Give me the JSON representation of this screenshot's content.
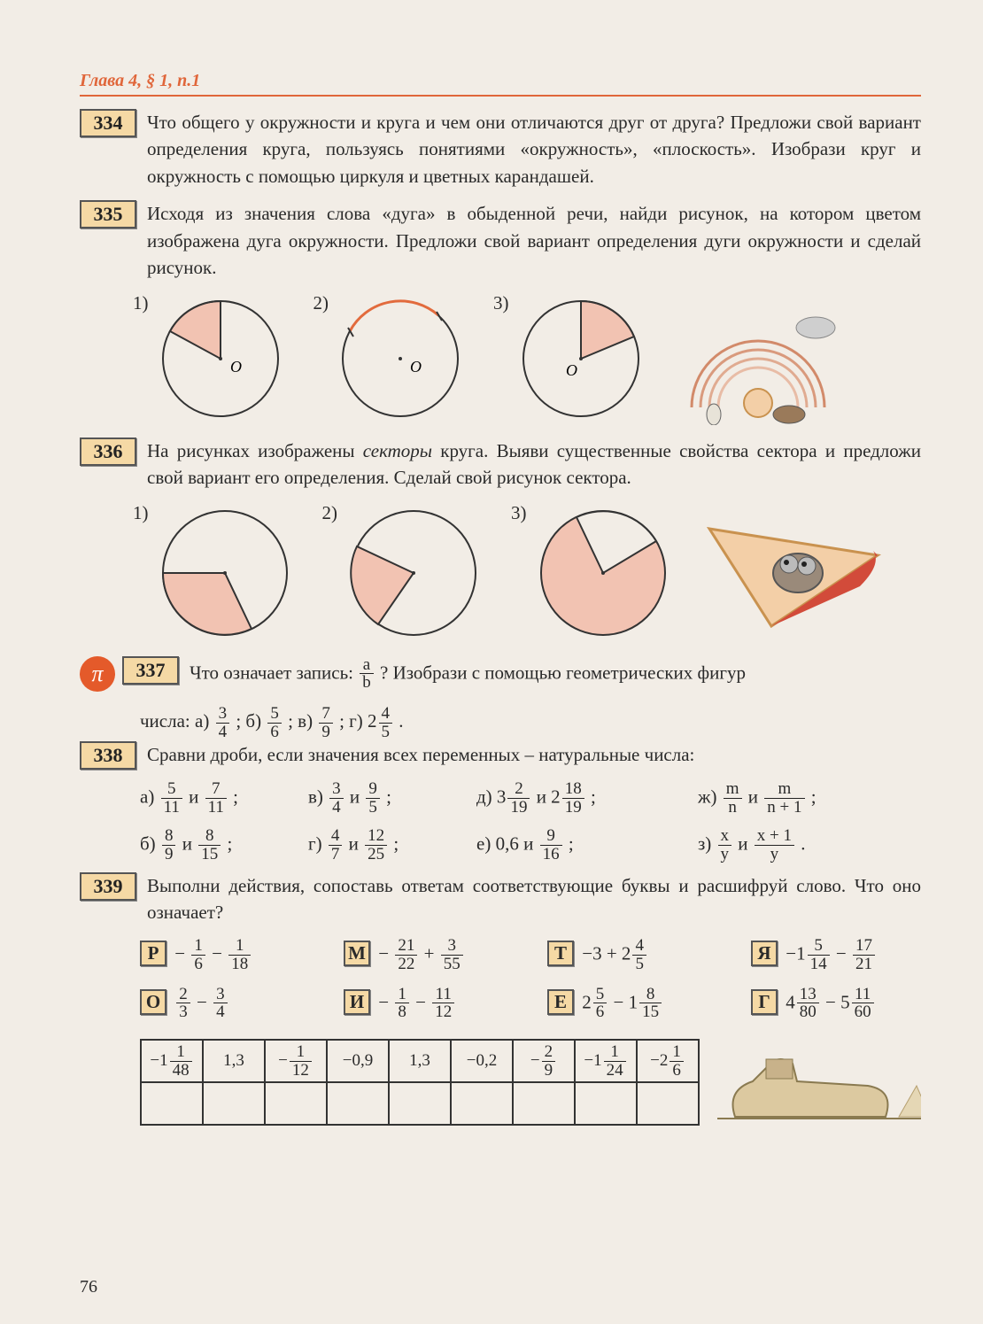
{
  "header": "Глава 4, § 1, п.1",
  "page_number": "76",
  "colors": {
    "accent": "#e0663a",
    "box_fill": "#f5d9a5",
    "sector_fill": "#f2c3b2",
    "stroke": "#333333",
    "arc_highlight": "#e26b3d",
    "page_bg": "#f2ede6"
  },
  "problems": {
    "p334": {
      "num": "334",
      "text": "Что общего у окружности и круга и чем они отличаются друг от друга? Предложи свой вариант определения круга, пользуясь понятиями «окружность», «плоскость». Изобрази круг и окружность с помощью циркуля и цветных карандашей."
    },
    "p335": {
      "num": "335",
      "text": "Исходя из значения слова «дуга» в обыденной речи, найди рисунок, на котором цветом изображена дуга окружности. Предложи свой вариант определения дуги окружности и сделай рисунок.",
      "figs": [
        "1)",
        "2)",
        "3)"
      ],
      "center_label": "O"
    },
    "p336": {
      "num": "336",
      "text_pre": "На рисунках изображены ",
      "text_em": "секторы",
      "text_post": " круга. Выяви существенные свойства сектора и предложи свой вариант его определения. Сделай свой рисунок сектора.",
      "figs": [
        "1)",
        "2)",
        "3)"
      ]
    },
    "p337": {
      "num": "337",
      "pi": "π",
      "text_a": "Что означает запись: ",
      "text_b": "? Изобрази с помощью геометрических фигур",
      "frac": {
        "n": "a",
        "d": "b"
      },
      "line2_pre": "числа: а) ",
      "parts": [
        {
          "label": "",
          "n": "3",
          "d": "4"
        },
        {
          "label": " ; б) ",
          "n": "5",
          "d": "6"
        },
        {
          "label": " ; в) ",
          "n": "7",
          "d": "9"
        },
        {
          "label": " ; г) 2",
          "n": "4",
          "d": "5"
        }
      ],
      "tail": " ."
    },
    "p338": {
      "num": "338",
      "text": "Сравни дроби, если значения всех переменных – натуральные числа:",
      "items": {
        "a": "а)",
        "a1": {
          "n": "5",
          "d": "11"
        },
        "a_and": " и ",
        "a2": {
          "n": "7",
          "d": "11"
        },
        "v": "в)",
        "v1": {
          "n": "3",
          "d": "4"
        },
        "v2": {
          "n": "9",
          "d": "5"
        },
        "d": "д) 3",
        "d1": {
          "n": "2",
          "d": "19"
        },
        "d_and": " и 2",
        "d2": {
          "n": "18",
          "d": "19"
        },
        "zh": "ж)",
        "zh1": {
          "n": "m",
          "d": "n"
        },
        "zh_and": " и ",
        "zh2": {
          "n": "m",
          "d": "n + 1"
        },
        "b": "б)",
        "b1": {
          "n": "8",
          "d": "9"
        },
        "b2": {
          "n": "8",
          "d": "15"
        },
        "g": "г)",
        "g1": {
          "n": "4",
          "d": "7"
        },
        "g2": {
          "n": "12",
          "d": "25"
        },
        "e": "е) 0,6 и ",
        "e2": {
          "n": "9",
          "d": "16"
        },
        "z": "з)",
        "z1": {
          "n": "x",
          "d": "y"
        },
        "z2": {
          "n": "x + 1",
          "d": "y"
        }
      }
    },
    "p339": {
      "num": "339",
      "text": "Выполни действия, сопоставь ответам соответствующие буквы и расшифруй слово. Что оно означает?",
      "cards": [
        {
          "L": "Р",
          "pre": " − ",
          "f1": {
            "n": "1",
            "d": "6"
          },
          "mid": " − ",
          "f2": {
            "n": "1",
            "d": "18"
          }
        },
        {
          "L": "М",
          "pre": " − ",
          "f1": {
            "n": "21",
            "d": "22"
          },
          "mid": " + ",
          "f2": {
            "n": "3",
            "d": "55"
          }
        },
        {
          "L": "Т",
          "pre": " −3 + 2",
          "f1": {
            "n": "4",
            "d": "5"
          }
        },
        {
          "L": "Я",
          "pre": " −1",
          "f1": {
            "n": "5",
            "d": "14"
          },
          "mid": " − ",
          "f2": {
            "n": "17",
            "d": "21"
          }
        },
        {
          "L": "О",
          "pre": " ",
          "f1": {
            "n": "2",
            "d": "3"
          },
          "mid": " − ",
          "f2": {
            "n": "3",
            "d": "4"
          }
        },
        {
          "L": "И",
          "pre": " − ",
          "f1": {
            "n": "1",
            "d": "8"
          },
          "mid": " − ",
          "f2": {
            "n": "11",
            "d": "12"
          }
        },
        {
          "L": "Е",
          "pre": " 2",
          "f1": {
            "n": "5",
            "d": "6"
          },
          "mid": " − 1",
          "f2": {
            "n": "8",
            "d": "15"
          }
        },
        {
          "L": "Г",
          "pre": " 4",
          "f1": {
            "n": "13",
            "d": "80"
          },
          "mid": " − 5",
          "f2": {
            "n": "11",
            "d": "60"
          }
        }
      ],
      "table": [
        {
          "whole": "−1",
          "n": "1",
          "d": "48"
        },
        {
          "plain": "1,3"
        },
        {
          "whole": "−",
          "n": "1",
          "d": "12"
        },
        {
          "plain": "−0,9"
        },
        {
          "plain": "1,3"
        },
        {
          "plain": "−0,2"
        },
        {
          "whole": "−",
          "n": "2",
          "d": "9"
        },
        {
          "whole": "−1",
          "n": "1",
          "d": "24"
        },
        {
          "whole": "−2",
          "n": "1",
          "d": "6"
        }
      ]
    }
  }
}
